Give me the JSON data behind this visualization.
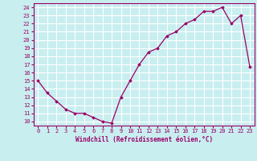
{
  "x": [
    0,
    1,
    2,
    3,
    4,
    5,
    6,
    7,
    8,
    9,
    10,
    11,
    12,
    13,
    14,
    15,
    16,
    17,
    18,
    19,
    20,
    21,
    22,
    23
  ],
  "y": [
    15.0,
    13.5,
    12.5,
    11.5,
    11.0,
    11.0,
    10.5,
    10.0,
    9.8,
    13.0,
    15.0,
    17.0,
    18.5,
    19.0,
    20.5,
    21.0,
    22.0,
    22.5,
    23.5,
    23.5,
    24.0,
    22.0,
    23.0,
    16.7
  ],
  "line_color": "#990066",
  "marker": "D",
  "marker_size": 1.8,
  "line_width": 0.9,
  "xlabel": "Windchill (Refroidissement éolien,°C)",
  "xlim": [
    -0.5,
    23.5
  ],
  "ylim": [
    9.5,
    24.5
  ],
  "yticks": [
    10,
    11,
    12,
    13,
    14,
    15,
    16,
    17,
    18,
    19,
    20,
    21,
    22,
    23,
    24
  ],
  "xtick_labels": [
    "0",
    "1",
    "2",
    "3",
    "4",
    "5",
    "6",
    "7",
    "8",
    "9",
    "10",
    "11",
    "12",
    "13",
    "14",
    "15",
    "16",
    "17",
    "18",
    "19",
    "20",
    "21",
    "22",
    "23"
  ],
  "bg_color": "#c8eef0",
  "grid_color": "#ffffff",
  "tick_color": "#990066",
  "label_color": "#990066",
  "font_size": 5.0,
  "xlabel_font_size": 5.5
}
